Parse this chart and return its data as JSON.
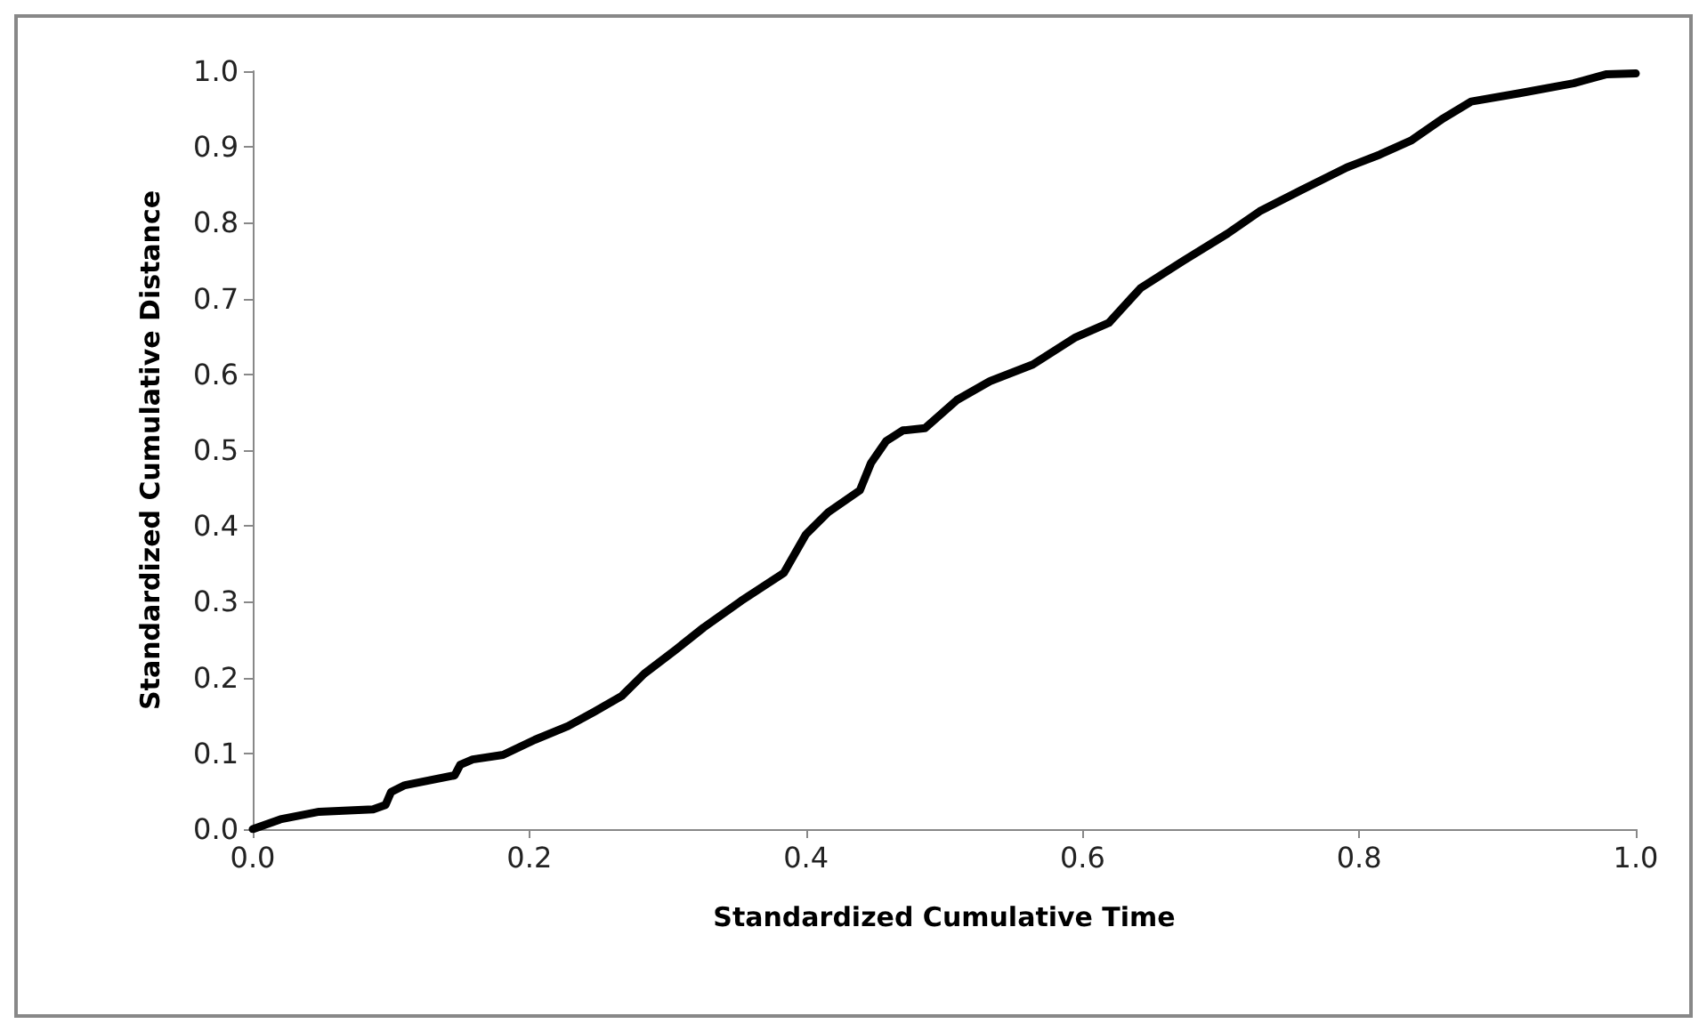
{
  "chart_data": {
    "type": "line",
    "xlabel": "Standardized Cumulative Time",
    "ylabel": "Standardized Cumulative Distance",
    "xlim": [
      0,
      1
    ],
    "ylim": [
      0,
      1
    ],
    "xticks": [
      {
        "value": 0,
        "label": "0.0"
      },
      {
        "value": 0.2,
        "label": "0.2"
      },
      {
        "value": 0.4,
        "label": "0.4"
      },
      {
        "value": 0.6,
        "label": "0.6"
      },
      {
        "value": 0.8,
        "label": "0.8"
      },
      {
        "value": 1,
        "label": "1.0"
      }
    ],
    "yticks": [
      {
        "value": 0,
        "label": "0.0"
      },
      {
        "value": 0.1,
        "label": "0.1"
      },
      {
        "value": 0.2,
        "label": "0.2"
      },
      {
        "value": 0.3,
        "label": "0.3"
      },
      {
        "value": 0.4,
        "label": "0.4"
      },
      {
        "value": 0.5,
        "label": "0.5"
      },
      {
        "value": 0.6,
        "label": "0.6"
      },
      {
        "value": 0.7,
        "label": "0.7"
      },
      {
        "value": 0.8,
        "label": "0.8"
      },
      {
        "value": 0.9,
        "label": "0.9"
      },
      {
        "value": 1,
        "label": "1.0"
      }
    ],
    "grid": false,
    "marker": "none",
    "line_style": "solid",
    "series": [
      {
        "color": "#000000",
        "x": [
          0,
          0.02,
          0.048,
          0.087,
          0.096,
          0.1,
          0.11,
          0.146,
          0.15,
          0.159,
          0.181,
          0.204,
          0.228,
          0.247,
          0.267,
          0.283,
          0.306,
          0.326,
          0.353,
          0.384,
          0.4,
          0.416,
          0.439,
          0.447,
          0.458,
          0.47,
          0.486,
          0.509,
          0.533,
          0.564,
          0.595,
          0.619,
          0.642,
          0.673,
          0.705,
          0.728,
          0.759,
          0.791,
          0.815,
          0.838,
          0.861,
          0.881,
          0.916,
          0.955,
          0.979,
          1
        ],
        "values": [
          0,
          0.013,
          0.023,
          0.026,
          0.032,
          0.049,
          0.058,
          0.071,
          0.085,
          0.092,
          0.098,
          0.118,
          0.136,
          0.155,
          0.176,
          0.205,
          0.237,
          0.266,
          0.301,
          0.338,
          0.389,
          0.418,
          0.447,
          0.483,
          0.512,
          0.526,
          0.529,
          0.566,
          0.591,
          0.613,
          0.649,
          0.668,
          0.714,
          0.75,
          0.786,
          0.815,
          0.844,
          0.873,
          0.89,
          0.909,
          0.938,
          0.96,
          0.971,
          0.984,
          0.996,
          0.997
        ]
      }
    ]
  }
}
